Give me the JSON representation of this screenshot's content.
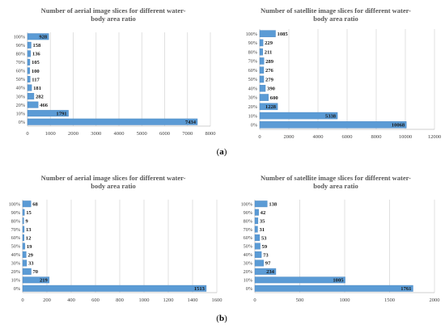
{
  "panels": [
    {
      "label_open": "(",
      "letter": "a",
      "label_close": ")"
    },
    {
      "label_open": "(",
      "letter": "b",
      "label_close": ")"
    }
  ],
  "colors": {
    "bar": "#5b9bd5",
    "grid": "#d9d9d9",
    "text": "#404040",
    "title": "#595959"
  },
  "chart_data": [
    {
      "type": "bar",
      "orientation": "horizontal",
      "title": "Number of aerial image slices for different water-body area ratio",
      "title_lines": [
        "Number of aerial image slices for different water-",
        "body area ratio"
      ],
      "categories": [
        "0%",
        "10%",
        "20%",
        "30%",
        "40%",
        "50%",
        "60%",
        "70%",
        "80%",
        "90%",
        "100%"
      ],
      "values": [
        7434,
        1791,
        466,
        282,
        181,
        117,
        100,
        105,
        136,
        158,
        928
      ],
      "xlim": [
        0,
        8000
      ],
      "xticks": [
        0,
        1000,
        2000,
        3000,
        4000,
        5000,
        6000,
        7000,
        8000
      ],
      "xtick_labels": [
        "0",
        "1000",
        "2000",
        "3000",
        "4000",
        "5000",
        "6000",
        "7000",
        "8000"
      ],
      "grid": true,
      "legend": "none"
    },
    {
      "type": "bar",
      "orientation": "horizontal",
      "title": "Number of satellite image slices for different water-body area ratio",
      "title_lines": [
        "Number of satellite image slices for different water-",
        "body area ratio"
      ],
      "categories": [
        "0%",
        "10%",
        "20%",
        "30%",
        "40%",
        "50%",
        "60%",
        "70%",
        "80%",
        "90%",
        "100%"
      ],
      "values": [
        10068,
        5338,
        1228,
        600,
        390,
        279,
        276,
        289,
        211,
        229,
        1085
      ],
      "xlim": [
        0,
        12000
      ],
      "xticks": [
        0,
        2000,
        4000,
        6000,
        8000,
        10000,
        12000
      ],
      "xtick_labels": [
        "0",
        "2000",
        "4000",
        "6000",
        "8000",
        "10000",
        "12000"
      ],
      "grid": true,
      "legend": "none"
    },
    {
      "type": "bar",
      "orientation": "horizontal",
      "title": "Number of aerial image slices for different water-body area ratio",
      "title_lines": [
        "Number of aerial image slices for different water-",
        "body area ratio"
      ],
      "categories": [
        "0%",
        "10%",
        "20%",
        "30%",
        "40%",
        "50%",
        "60%",
        "70%",
        "80%",
        "90%",
        "100%"
      ],
      "values": [
        1513,
        219,
        70,
        33,
        29,
        19,
        12,
        13,
        9,
        15,
        68
      ],
      "xlim": [
        0,
        1600
      ],
      "xticks": [
        0,
        200,
        400,
        600,
        800,
        1000,
        1200,
        1400,
        1600
      ],
      "xtick_labels": [
        "0",
        "200",
        "400",
        "600",
        "800",
        "1000",
        "1200",
        "1400",
        "1600"
      ],
      "grid": true,
      "legend": "none"
    },
    {
      "type": "bar",
      "orientation": "horizontal",
      "title": "Number of satellite image slices for different water-body area ratio",
      "title_lines": [
        "Number of satellite image slices for different water-",
        "body area ratio"
      ],
      "categories": [
        "0%",
        "10%",
        "20%",
        "30%",
        "40%",
        "50%",
        "60%",
        "70%",
        "80%",
        "90%",
        "100%"
      ],
      "values": [
        1761,
        1005,
        234,
        97,
        73,
        59,
        53,
        31,
        35,
        42,
        138
      ],
      "xlim": [
        0,
        2000
      ],
      "xticks": [
        0,
        500,
        1000,
        1500,
        2000
      ],
      "xtick_labels": [
        "0",
        "500",
        "1000",
        "1500",
        "2000"
      ],
      "grid": true,
      "legend": "none"
    }
  ]
}
